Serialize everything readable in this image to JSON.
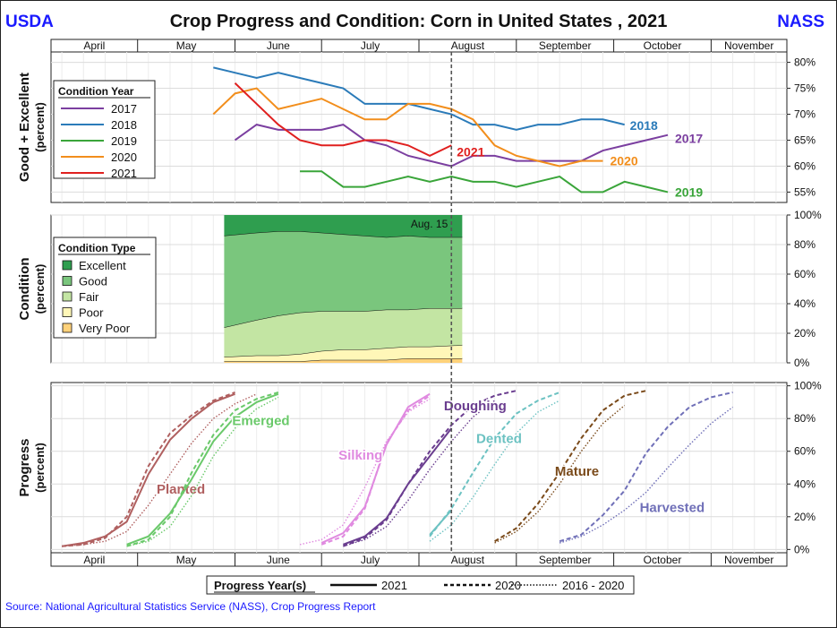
{
  "header": {
    "left_logo_text": "USDA",
    "title": "Crop Progress and Condition: Corn in United States , 2021",
    "right_logo_text": "NASS"
  },
  "source_note": "Source: National Agricultural Statistics Service (NASS), Crop Progress Report",
  "colors": {
    "y2017": "#7b3fa0",
    "y2018": "#2b7bb9",
    "y2019": "#3aa53a",
    "y2020": "#f28e1c",
    "y2021": "#e0201f",
    "excellent": "#2f9e4f",
    "good": "#7ac67d",
    "fair": "#c3e5a3",
    "poor": "#fff7b8",
    "very_poor": "#ffd27a",
    "planted": "#b06060",
    "emerged": "#6ac96a",
    "silking": "#e08ae0",
    "doughing": "#6a3d8f",
    "dented": "#6cc2c2",
    "mature": "#7a4a1a",
    "harvested": "#7070b8",
    "reference_line": "#555555",
    "logo_text": "#1a1aff"
  },
  "chart_data": [
    {
      "type": "line",
      "panel": "good_excellent",
      "ylabel": "Good + Excellent",
      "ylabel_unit": "(percent)",
      "y_ticks": [
        "55%",
        "60%",
        "65%",
        "70%",
        "75%",
        "80%"
      ],
      "ylim": [
        53,
        82
      ],
      "x_unit": "week",
      "months": [
        "April",
        "May",
        "June",
        "July",
        "August",
        "September",
        "October",
        "November"
      ],
      "legend_title": "Condition Year",
      "legend_position": "left",
      "series": [
        {
          "name": "2017",
          "end_label": "2017",
          "x": [
            22,
            23,
            24,
            25,
            26,
            27,
            28,
            29,
            30,
            31,
            32,
            33,
            34,
            35,
            36,
            37,
            38,
            39,
            40,
            41,
            42
          ],
          "values": [
            65,
            68,
            67,
            67,
            67,
            68,
            65,
            64,
            62,
            61,
            60,
            62,
            62,
            61,
            61,
            61,
            61,
            63,
            64,
            65,
            66
          ]
        },
        {
          "name": "2018",
          "end_label": "2018",
          "x": [
            21,
            22,
            23,
            24,
            25,
            26,
            27,
            28,
            29,
            30,
            31,
            32,
            33,
            34,
            35,
            36,
            37,
            38,
            39,
            40
          ],
          "values": [
            79,
            78,
            77,
            78,
            77,
            76,
            75,
            72,
            72,
            72,
            71,
            70,
            68,
            68,
            67,
            68,
            68,
            69,
            69,
            68
          ]
        },
        {
          "name": "2019",
          "end_label": "2019",
          "x": [
            25,
            26,
            27,
            28,
            29,
            30,
            31,
            32,
            33,
            34,
            35,
            36,
            37,
            38,
            39,
            40,
            41,
            42
          ],
          "values": [
            59,
            59,
            56,
            56,
            57,
            58,
            57,
            58,
            57,
            57,
            56,
            57,
            58,
            55,
            55,
            57,
            56,
            55
          ]
        },
        {
          "name": "2020",
          "end_label": "2020",
          "x": [
            21,
            22,
            23,
            24,
            25,
            26,
            27,
            28,
            29,
            30,
            31,
            32,
            33,
            34,
            35,
            36,
            37,
            38,
            39
          ],
          "values": [
            70,
            74,
            75,
            71,
            72,
            73,
            71,
            69,
            69,
            72,
            72,
            71,
            69,
            64,
            62,
            61,
            60,
            61,
            61
          ]
        },
        {
          "name": "2021",
          "end_label": "2021",
          "x": [
            22,
            23,
            24,
            25,
            26,
            27,
            28,
            29,
            30,
            31,
            32
          ],
          "values": [
            76,
            72,
            68,
            65,
            64,
            64,
            65,
            65,
            64,
            62,
            64
          ]
        }
      ]
    },
    {
      "type": "area",
      "panel": "condition",
      "ylabel": "Condition",
      "ylabel_unit": "(percent)",
      "y_ticks": [
        "0%",
        "20%",
        "40%",
        "60%",
        "80%",
        "100%"
      ],
      "ylim": [
        0,
        100
      ],
      "x_unit": "week",
      "annotation": "Aug. 15",
      "legend_title": "Condition Type",
      "legend_position": "left",
      "x": [
        22,
        23,
        24,
        25,
        26,
        27,
        28,
        29,
        30,
        31,
        32
      ],
      "series": [
        {
          "name": "Very Poor",
          "values": [
            1,
            1,
            1,
            1,
            2,
            2,
            2,
            2,
            3,
            3,
            3
          ]
        },
        {
          "name": "Poor",
          "values": [
            3,
            4,
            4,
            5,
            6,
            7,
            7,
            8,
            8,
            8,
            9
          ]
        },
        {
          "name": "Fair",
          "values": [
            20,
            24,
            27,
            28,
            27,
            26,
            26,
            26,
            25,
            26,
            25
          ]
        },
        {
          "name": "Good",
          "values": [
            62,
            59,
            57,
            55,
            53,
            52,
            51,
            49,
            50,
            48,
            48
          ]
        },
        {
          "name": "Excellent",
          "values": [
            14,
            12,
            11,
            11,
            12,
            13,
            14,
            15,
            14,
            15,
            15
          ]
        }
      ]
    },
    {
      "type": "line",
      "panel": "progress",
      "ylabel": "Progress",
      "ylabel_unit": "(percent)",
      "y_ticks": [
        "0%",
        "20%",
        "40%",
        "60%",
        "80%",
        "100%"
      ],
      "ylim": [
        -2,
        102
      ],
      "x_unit": "week",
      "months": [
        "April",
        "May",
        "June",
        "July",
        "August",
        "September",
        "October",
        "November"
      ],
      "legend_title": "Progress Year(s)",
      "legend_items": [
        "2021",
        "2020",
        "2016 - 2020"
      ],
      "legend_position": "bottom",
      "stages": [
        {
          "name": "Planted",
          "color_key": "planted",
          "y2021": {
            "x": [
              14,
              15,
              16,
              17,
              18,
              19,
              20,
              21,
              22
            ],
            "values": [
              2,
              4,
              8,
              17,
              46,
              67,
              80,
              90,
              95
            ]
          },
          "y2020": {
            "x": [
              14,
              15,
              16,
              17,
              18,
              19,
              20,
              21,
              22
            ],
            "values": [
              2,
              3,
              7,
              20,
              51,
              71,
              82,
              91,
              96
            ]
          },
          "avg": {
            "x": [
              14,
              15,
              16,
              17,
              18,
              19,
              20,
              21,
              22,
              23
            ],
            "values": [
              2,
              3,
              5,
              11,
              27,
              46,
              65,
              80,
              89,
              95
            ]
          }
        },
        {
          "name": "Emerged",
          "color_key": "emerged",
          "y2021": {
            "x": [
              17,
              18,
              19,
              20,
              21,
              22,
              23,
              24
            ],
            "values": [
              3,
              8,
              22,
              43,
              66,
              81,
              90,
              95
            ]
          },
          "y2020": {
            "x": [
              17,
              18,
              19,
              20,
              21,
              22,
              23,
              24
            ],
            "values": [
              2,
              6,
              20,
              47,
              70,
              85,
              92,
              96
            ]
          },
          "avg": {
            "x": [
              17,
              18,
              19,
              20,
              21,
              22,
              23,
              24
            ],
            "values": [
              2,
              5,
              14,
              33,
              57,
              74,
              86,
              93
            ]
          }
        },
        {
          "name": "Silking",
          "color_key": "silking",
          "y2021": {
            "x": [
              26,
              27,
              28,
              29,
              30,
              31
            ],
            "values": [
              4,
              10,
              26,
              64,
              87,
              95
            ]
          },
          "y2020": {
            "x": [
              26,
              27,
              28,
              29,
              30,
              31
            ],
            "values": [
              3,
              8,
              25,
              65,
              85,
              94
            ]
          },
          "avg": {
            "x": [
              25,
              26,
              27,
              28,
              29,
              30,
              31
            ],
            "values": [
              3,
              6,
              15,
              38,
              66,
              84,
              92
            ]
          }
        },
        {
          "name": "Doughing",
          "color_key": "doughing",
          "y2021": {
            "x": [
              27,
              28,
              29,
              30,
              31,
              32
            ],
            "values": [
              3,
              8,
              19,
              40,
              57,
              74
            ]
          },
          "y2020": {
            "x": [
              27,
              28,
              29,
              30,
              31,
              32,
              33,
              34,
              35
            ],
            "values": [
              2,
              7,
              18,
              40,
              60,
              76,
              88,
              94,
              97
            ]
          },
          "avg": {
            "x": [
              27,
              28,
              29,
              30,
              31,
              32,
              33,
              34
            ],
            "values": [
              2,
              6,
              14,
              30,
              49,
              66,
              81,
              91
            ]
          }
        },
        {
          "name": "Dented",
          "color_key": "dented",
          "y2021": {
            "x": [
              31,
              32
            ],
            "values": [
              9,
              24
            ]
          },
          "y2020": {
            "x": [
              31,
              32,
              33,
              34,
              35,
              36,
              37
            ],
            "values": [
              8,
              25,
              47,
              68,
              83,
              91,
              96
            ]
          },
          "avg": {
            "x": [
              31,
              32,
              33,
              34,
              35,
              36,
              37
            ],
            "values": [
              5,
              15,
              32,
              52,
              71,
              84,
              91
            ]
          }
        },
        {
          "name": "Mature",
          "color_key": "mature",
          "y2020": {
            "x": [
              34,
              35,
              36,
              37,
              38,
              39,
              40,
              41
            ],
            "values": [
              5,
              13,
              28,
              47,
              68,
              85,
              94,
              97
            ]
          },
          "avg": {
            "x": [
              34,
              35,
              36,
              37,
              38,
              39,
              40
            ],
            "values": [
              4,
              11,
              23,
              40,
              60,
              77,
              88
            ]
          }
        },
        {
          "name": "Harvested",
          "color_key": "harvested",
          "y2020": {
            "x": [
              37,
              38,
              39,
              40,
              41,
              42,
              43,
              44,
              45
            ],
            "values": [
              5,
              9,
              21,
              36,
              59,
              75,
              87,
              93,
              96
            ]
          },
          "avg": {
            "x": [
              37,
              38,
              39,
              40,
              41,
              42,
              43,
              44,
              45
            ],
            "values": [
              4,
              8,
              15,
              24,
              35,
              50,
              64,
              77,
              87
            ]
          }
        }
      ]
    }
  ]
}
